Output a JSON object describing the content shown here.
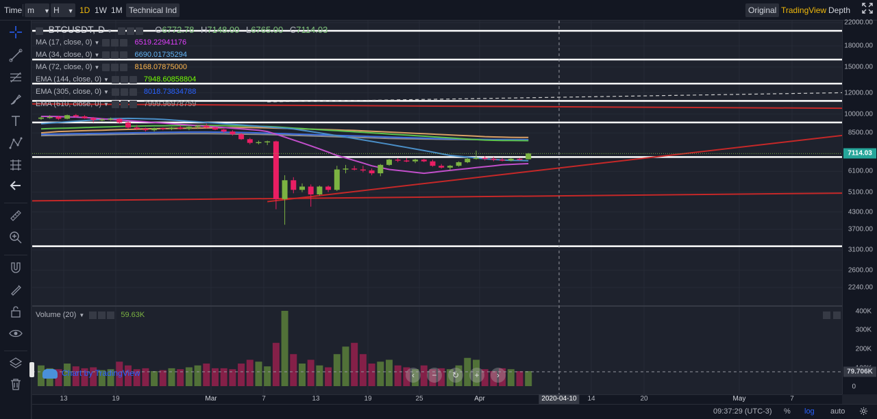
{
  "toolbar": {
    "time_label": "Time",
    "interval_minute": "m",
    "interval_hour": "H",
    "interval_1d": "1D",
    "interval_1w": "1W",
    "interval_1m": "1M",
    "technical_ind": "Technical Ind",
    "view_original": "Original",
    "view_tradingview": "TradingView",
    "view_depth": "Depth",
    "fullscreen_icon": "fullscreen-icon"
  },
  "legend": {
    "symbol": "BTCUSDT, D",
    "open_key": "O",
    "open": "6772.78",
    "high_key": "H",
    "high": "7148.00",
    "low_key": "L",
    "low": "6765.00",
    "close_key": "C",
    "close": "7114.03",
    "indicators": [
      {
        "name": "MA (17, close, 0)",
        "value": "6519.22941176",
        "color": "#e040fb"
      },
      {
        "name": "MA (34, close, 0)",
        "value": "6690.01735294",
        "color": "#64b5f6"
      },
      {
        "name": "MA (72, close, 0)",
        "value": "8168.07875000",
        "color": "#ffb74d"
      },
      {
        "name": "EMA (144, close, 0)",
        "value": "7948.60858804",
        "color": "#76ff03"
      },
      {
        "name": "EMA (305, close, 0)",
        "value": "8018.73834788",
        "color": "#2962ff"
      },
      {
        "name": "EMA (610, close, 0)",
        "value": "7999.96978759",
        "color": "#9e9e9e"
      }
    ]
  },
  "volume": {
    "name": "Volume (20)",
    "value": "59.63K",
    "axis_labels": [
      "400K",
      "300K",
      "200K",
      "100K",
      "0"
    ],
    "last_tag": "79.706K"
  },
  "price_axis": {
    "labels": [
      "22000.00",
      "18000.00",
      "15000.00",
      "12000.00",
      "10000.00",
      "8500.00",
      "7114.03",
      "6100.00",
      "5100.00",
      "4300.00",
      "3700.00",
      "3100.00",
      "2600.00",
      "2240.00"
    ],
    "current": "7114.03"
  },
  "time_axis": {
    "labels": [
      "13",
      "19",
      "Mar",
      "7",
      "13",
      "19",
      "25",
      "Apr",
      "14",
      "20",
      "May",
      "7"
    ],
    "highlight": "2020-04-10"
  },
  "watermark": "Chart by TradingView",
  "status": {
    "clock": "09:37:29 (UTC-3)",
    "percent": "%",
    "log": "log",
    "auto": "auto"
  },
  "colors": {
    "background": "#1e222d",
    "up_candle": "#7cb342",
    "down_candle": "#e91e63",
    "trendline": "#c62828",
    "hline": "#ffffff",
    "accent": "#f0b90b"
  },
  "chart_data": {
    "type": "candlestick",
    "symbol": "BTCUSDT",
    "interval": "D",
    "scale": "log",
    "ohlc": [
      {
        "o": 9600,
        "h": 9800,
        "l": 9500,
        "c": 9700
      },
      {
        "o": 9700,
        "h": 9900,
        "l": 9600,
        "c": 9750
      },
      {
        "o": 9750,
        "h": 9850,
        "l": 9500,
        "c": 9600
      },
      {
        "o": 9600,
        "h": 9950,
        "l": 9550,
        "c": 9900
      },
      {
        "o": 9900,
        "h": 10000,
        "l": 9700,
        "c": 9800
      },
      {
        "o": 9800,
        "h": 9900,
        "l": 9600,
        "c": 9650
      },
      {
        "o": 9650,
        "h": 9750,
        "l": 9300,
        "c": 9500
      },
      {
        "o": 9500,
        "h": 9650,
        "l": 9400,
        "c": 9550
      },
      {
        "o": 9550,
        "h": 9700,
        "l": 9450,
        "c": 9600
      },
      {
        "o": 9600,
        "h": 9650,
        "l": 9200,
        "c": 9300
      },
      {
        "o": 9300,
        "h": 9400,
        "l": 8800,
        "c": 8900
      },
      {
        "o": 8900,
        "h": 9100,
        "l": 8700,
        "c": 8800
      },
      {
        "o": 8800,
        "h": 8900,
        "l": 8600,
        "c": 8700
      },
      {
        "o": 8700,
        "h": 8900,
        "l": 8600,
        "c": 8850
      },
      {
        "o": 8850,
        "h": 8900,
        "l": 8700,
        "c": 8800
      },
      {
        "o": 8800,
        "h": 8950,
        "l": 8700,
        "c": 8900
      },
      {
        "o": 8900,
        "h": 9050,
        "l": 8750,
        "c": 8800
      },
      {
        "o": 8800,
        "h": 9000,
        "l": 8700,
        "c": 8950
      },
      {
        "o": 8950,
        "h": 9100,
        "l": 8800,
        "c": 9050
      },
      {
        "o": 9050,
        "h": 9200,
        "l": 8850,
        "c": 8900
      },
      {
        "o": 8900,
        "h": 8950,
        "l": 8700,
        "c": 8750
      },
      {
        "o": 8750,
        "h": 8800,
        "l": 8500,
        "c": 8600
      },
      {
        "o": 8600,
        "h": 8700,
        "l": 8300,
        "c": 8400
      },
      {
        "o": 8400,
        "h": 8500,
        "l": 8000,
        "c": 8050
      },
      {
        "o": 8050,
        "h": 8150,
        "l": 7700,
        "c": 7800
      },
      {
        "o": 7800,
        "h": 7950,
        "l": 7700,
        "c": 7850
      },
      {
        "o": 7850,
        "h": 7950,
        "l": 7650,
        "c": 7900
      },
      {
        "o": 7900,
        "h": 7950,
        "l": 4400,
        "c": 4800
      },
      {
        "o": 4800,
        "h": 5900,
        "l": 3850,
        "c": 5650
      },
      {
        "o": 5650,
        "h": 5800,
        "l": 5050,
        "c": 5200
      },
      {
        "o": 5200,
        "h": 5500,
        "l": 5100,
        "c": 5350
      },
      {
        "o": 5350,
        "h": 5450,
        "l": 4500,
        "c": 5000
      },
      {
        "o": 5000,
        "h": 5400,
        "l": 4950,
        "c": 5350
      },
      {
        "o": 5350,
        "h": 5400,
        "l": 5100,
        "c": 5200
      },
      {
        "o": 5200,
        "h": 6400,
        "l": 5150,
        "c": 6200
      },
      {
        "o": 6200,
        "h": 6450,
        "l": 6000,
        "c": 6250
      },
      {
        "o": 6250,
        "h": 6400,
        "l": 6150,
        "c": 6200
      },
      {
        "o": 6200,
        "h": 6400,
        "l": 6050,
        "c": 6150
      },
      {
        "o": 6150,
        "h": 6250,
        "l": 5900,
        "c": 6000
      },
      {
        "o": 6000,
        "h": 6500,
        "l": 5850,
        "c": 6450
      },
      {
        "o": 6450,
        "h": 6800,
        "l": 6400,
        "c": 6750
      },
      {
        "o": 6750,
        "h": 6850,
        "l": 6600,
        "c": 6700
      },
      {
        "o": 6700,
        "h": 6850,
        "l": 6600,
        "c": 6650
      },
      {
        "o": 6650,
        "h": 6800,
        "l": 6550,
        "c": 6750
      },
      {
        "o": 6750,
        "h": 6800,
        "l": 6600,
        "c": 6650
      },
      {
        "o": 6650,
        "h": 6750,
        "l": 6350,
        "c": 6400
      },
      {
        "o": 6400,
        "h": 6500,
        "l": 6250,
        "c": 6300
      },
      {
        "o": 6300,
        "h": 6450,
        "l": 6150,
        "c": 6400
      },
      {
        "o": 6400,
        "h": 6650,
        "l": 6350,
        "c": 6600
      },
      {
        "o": 6600,
        "h": 6850,
        "l": 6550,
        "c": 6800
      },
      {
        "o": 6800,
        "h": 7300,
        "l": 6750,
        "c": 6850
      },
      {
        "o": 6850,
        "h": 6950,
        "l": 6700,
        "c": 6800
      },
      {
        "o": 6800,
        "h": 6900,
        "l": 6650,
        "c": 6750
      },
      {
        "o": 6750,
        "h": 6850,
        "l": 6650,
        "c": 6700
      },
      {
        "o": 6700,
        "h": 6850,
        "l": 6650,
        "c": 6800
      },
      {
        "o": 6800,
        "h": 6850,
        "l": 6700,
        "c": 6750
      },
      {
        "o": 6772.78,
        "h": 7148,
        "l": 6765,
        "c": 7114.03
      }
    ],
    "volume": [
      110,
      95,
      90,
      120,
      105,
      95,
      100,
      85,
      90,
      130,
      110,
      90,
      95,
      80,
      85,
      95,
      90,
      100,
      110,
      120,
      95,
      95,
      90,
      120,
      140,
      130,
      105,
      230,
      400,
      170,
      120,
      140,
      110,
      100,
      170,
      210,
      230,
      170,
      120,
      130,
      140,
      110,
      100,
      90,
      110,
      90,
      95,
      90,
      110,
      150,
      140,
      90,
      80,
      95,
      90,
      80,
      80
    ],
    "ma17": [
      9800,
      9800,
      9780,
      9760,
      9740,
      9700,
      9660,
      9600,
      9550,
      9500,
      9450,
      9400,
      9350,
      9300,
      9250,
      9200,
      9150,
      9100,
      9050,
      9000,
      8950,
      8900,
      8850,
      8800,
      8750,
      8700,
      8600,
      8400,
      8200,
      8000,
      7800,
      7600,
      7400,
      7200,
      7000,
      6850,
      6700,
      6550,
      6400,
      6300,
      6200,
      6150,
      6100,
      6050,
      6000,
      6050,
      6100,
      6150,
      6200,
      6250,
      6300,
      6350,
      6400,
      6450,
      6480,
      6500,
      6519
    ],
    "ma34": [
      9200,
      9250,
      9300,
      9350,
      9400,
      9450,
      9500,
      9550,
      9600,
      9620,
      9630,
      9620,
      9600,
      9580,
      9550,
      9500,
      9450,
      9400,
      9350,
      9300,
      9250,
      9200,
      9150,
      9100,
      9050,
      9000,
      8950,
      8900,
      8850,
      8800,
      8700,
      8600,
      8500,
      8400,
      8300,
      8200,
      8100,
      8000,
      7900,
      7800,
      7700,
      7600,
      7500,
      7400,
      7300,
      7200,
      7100,
      7000,
      6950,
      6900,
      6850,
      6800,
      6760,
      6730,
      6710,
      6700,
      6690
    ],
    "ma72": [
      8500,
      8550,
      8600,
      8620,
      8640,
      8660,
      8680,
      8700,
      8720,
      8740,
      8760,
      8780,
      8800,
      8810,
      8820,
      8830,
      8840,
      8850,
      8860,
      8870,
      8880,
      8890,
      8900,
      8900,
      8900,
      8890,
      8880,
      8860,
      8840,
      8820,
      8800,
      8780,
      8760,
      8740,
      8720,
      8700,
      8680,
      8650,
      8620,
      8590,
      8560,
      8530,
      8500,
      8470,
      8440,
      8410,
      8380,
      8350,
      8320,
      8290,
      8260,
      8230,
      8210,
      8195,
      8180,
      8175,
      8168
    ],
    "ema144": [
      8800,
      8820,
      8840,
      8860,
      8880,
      8900,
      8920,
      8940,
      8960,
      8980,
      9000,
      9010,
      9020,
      9030,
      9040,
      9050,
      9055,
      9060,
      9060,
      9060,
      9055,
      9050,
      9040,
      9030,
      9020,
      9000,
      8980,
      8950,
      8900,
      8860,
      8820,
      8780,
      8740,
      8700,
      8660,
      8620,
      8580,
      8540,
      8500,
      8460,
      8420,
      8380,
      8340,
      8300,
      8260,
      8220,
      8180,
      8140,
      8100,
      8060,
      8020,
      7990,
      7970,
      7960,
      7955,
      7950,
      7948
    ],
    "ema305": [
      8400,
      8410,
      8420,
      8430,
      8440,
      8450,
      8460,
      8470,
      8480,
      8490,
      8500,
      8510,
      8520,
      8530,
      8540,
      8550,
      8555,
      8560,
      8560,
      8560,
      8555,
      8550,
      8540,
      8530,
      8520,
      8500,
      8480,
      8460,
      8440,
      8420,
      8400,
      8380,
      8360,
      8340,
      8320,
      8300,
      8280,
      8260,
      8240,
      8220,
      8200,
      8180,
      8160,
      8140,
      8120,
      8100,
      8085,
      8070,
      8060,
      8050,
      8040,
      8035,
      8030,
      8025,
      8022,
      8020,
      8018
    ],
    "ema610": [
      8300,
      8310,
      8320,
      8330,
      8340,
      8350,
      8360,
      8370,
      8380,
      8390,
      8400,
      8410,
      8420,
      8425,
      8430,
      8435,
      8440,
      8440,
      8440,
      8440,
      8435,
      8430,
      8420,
      8410,
      8400,
      8390,
      8380,
      8360,
      8340,
      8320,
      8300,
      8280,
      8260,
      8240,
      8220,
      8200,
      8180,
      8160,
      8140,
      8120,
      8100,
      8090,
      8080,
      8070,
      8060,
      8050,
      8040,
      8030,
      8025,
      8020,
      8015,
      8010,
      8005,
      8003,
      8001,
      8000,
      7999
    ],
    "horizontal_levels": [
      20500,
      16000,
      13000,
      11200,
      9300,
      6900,
      3200
    ],
    "trendlines": [
      {
        "from": {
          "bar": -10,
          "price": 4700
        },
        "to": {
          "bar": 118,
          "price": 5150
        }
      },
      {
        "from": {
          "bar": 26,
          "price": 4700
        },
        "to": {
          "bar": 118,
          "price": 10400
        }
      },
      {
        "from": {
          "bar": -10,
          "price": 10950
        },
        "to": {
          "bar": 118,
          "price": 10400
        }
      }
    ],
    "dashed_line": {
      "from": {
        "bar": 26,
        "price": 11100
      },
      "to": {
        "bar": 118,
        "price": 12400
      }
    },
    "crosshair_date": "2020-04-10",
    "last_price": 7114.03
  }
}
